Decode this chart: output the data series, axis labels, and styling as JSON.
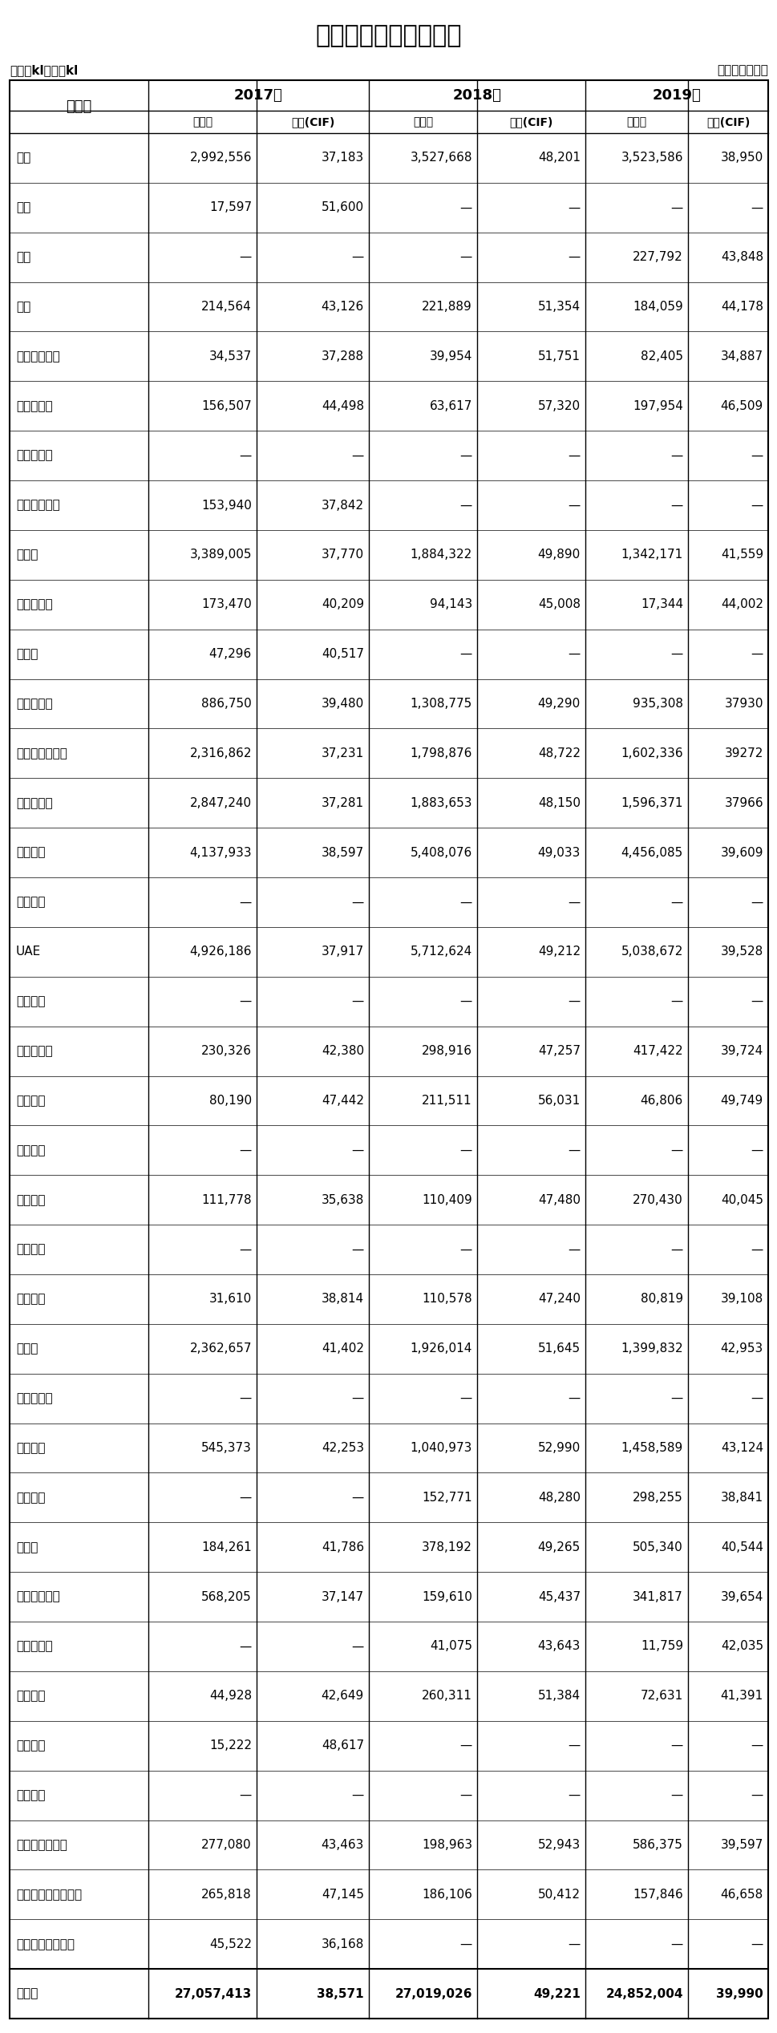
{
  "title": "ナフサの国別輸入実績",
  "unit_label": "単位：kl、円／kl",
  "source_label": "財務省貿易統計",
  "rows": [
    [
      "韓国",
      "2,992,556",
      "37,183",
      "3,527,668",
      "48,201",
      "3,523,586",
      "38,950"
    ],
    [
      "中国",
      "17,597",
      "51,600",
      "—",
      "—",
      "—",
      "—"
    ],
    [
      "台湾",
      "—",
      "—",
      "—",
      "—",
      "227,792",
      "43,848"
    ],
    [
      "タイ",
      "214,564",
      "43,126",
      "221,889",
      "51,354",
      "184,059",
      "44,178"
    ],
    [
      "シンガポール",
      "34,537",
      "37,288",
      "39,954",
      "51,751",
      "82,405",
      "34,887"
    ],
    [
      "マレーシア",
      "156,507",
      "44,498",
      "63,617",
      "57,320",
      "197,954",
      "46,509"
    ],
    [
      "フィリピン",
      "—",
      "—",
      "—",
      "—",
      "—",
      "—"
    ],
    [
      "インドネシア",
      "153,940",
      "37,842",
      "—",
      "—",
      "—",
      "—"
    ],
    [
      "インド",
      "3,389,005",
      "37,770",
      "1,884,322",
      "49,890",
      "1,342,171",
      "41,559"
    ],
    [
      "パキスタン",
      "173,470",
      "40,209",
      "94,143",
      "45,008",
      "17,344",
      "44,002"
    ],
    [
      "イラン",
      "47,296",
      "40,517",
      "—",
      "—",
      "—",
      "—"
    ],
    [
      "バーレーン",
      "886,750",
      "39,480",
      "1,308,775",
      "49,290",
      "935,308",
      "37930"
    ],
    [
      "サウジアラビア",
      "2,316,862",
      "37,231",
      "1,798,876",
      "48,722",
      "1,602,336",
      "39272"
    ],
    [
      "クウェート",
      "2,847,240",
      "37,281",
      "1,883,653",
      "48,150",
      "1,596,371",
      "37966"
    ],
    [
      "カタール",
      "4,137,933",
      "38,597",
      "5,408,076",
      "49,033",
      "4,456,085",
      "39,609"
    ],
    [
      "オマーン",
      "—",
      "—",
      "—",
      "—",
      "—",
      "—"
    ],
    [
      "UAE",
      "4,926,186",
      "37,917",
      "5,712,624",
      "49,212",
      "5,038,672",
      "39,528"
    ],
    [
      "イエメン",
      "—",
      "—",
      "—",
      "—",
      "—",
      "—"
    ],
    [
      "ノルウェー",
      "230,326",
      "42,380",
      "298,916",
      "47,257",
      "417,422",
      "39,724"
    ],
    [
      "オランダ",
      "80,190",
      "47,442",
      "211,511",
      "56,031",
      "46,806",
      "49,749"
    ],
    [
      "フランス",
      "—",
      "—",
      "—",
      "—",
      "—",
      "—"
    ],
    [
      "スペイン",
      "111,778",
      "35,638",
      "110,409",
      "47,480",
      "270,430",
      "40,045"
    ],
    [
      "イタリア",
      "—",
      "—",
      "—",
      "—",
      "—",
      "—"
    ],
    [
      "ギリシャ",
      "31,610",
      "38,814",
      "110,578",
      "47,240",
      "80,819",
      "39,108"
    ],
    [
      "ロシア",
      "2,362,657",
      "41,402",
      "1,926,014",
      "51,645",
      "1,399,832",
      "42,953"
    ],
    [
      "エストニア",
      "—",
      "—",
      "—",
      "—",
      "—",
      "—"
    ],
    [
      "アメリカ",
      "545,373",
      "42,253",
      "1,040,973",
      "52,990",
      "1,458,589",
      "43,124"
    ],
    [
      "メキシコ",
      "—",
      "—",
      "152,771",
      "48,280",
      "298,255",
      "38,841"
    ],
    [
      "ペルー",
      "184,261",
      "41,786",
      "378,192",
      "49,265",
      "505,340",
      "40,544"
    ],
    [
      "アルジェリア",
      "568,205",
      "37,147",
      "159,610",
      "45,437",
      "341,817",
      "39,654"
    ],
    [
      "南アフリカ",
      "—",
      "—",
      "41,075",
      "43,643",
      "11,759",
      "42,035"
    ],
    [
      "エジプト",
      "44,928",
      "42,649",
      "260,311",
      "51,384",
      "72,631",
      "41,391"
    ],
    [
      "セネガル",
      "15,222",
      "48,617",
      "—",
      "—",
      "—",
      "—"
    ],
    [
      "アンゴラ",
      "—",
      "—",
      "—",
      "—",
      "—",
      "—"
    ],
    [
      "オーストラリア",
      "277,080",
      "43,463",
      "198,963",
      "52,943",
      "586,375",
      "39,597"
    ],
    [
      "パプアニューギニア",
      "265,818",
      "47,145",
      "186,106",
      "50,412",
      "157,846",
      "46,658"
    ],
    [
      "ニュージーランド",
      "45,522",
      "36,168",
      "—",
      "—",
      "—",
      "—"
    ],
    [
      "合　計",
      "27,057,413",
      "38,571",
      "27,019,026",
      "49,221",
      "24,852,004",
      "39,990"
    ]
  ],
  "bg_color": "#ffffff",
  "figsize": [
    9.7,
    25.35
  ],
  "dpi": 100
}
